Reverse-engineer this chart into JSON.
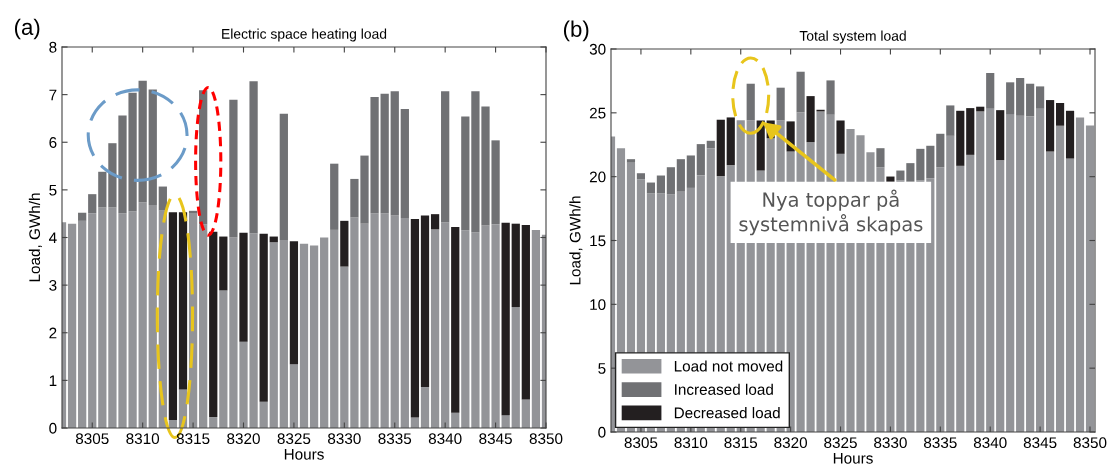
{
  "chart_data": [
    {
      "type": "bar",
      "title": "Electric space heating load",
      "xlabel": "Hours",
      "ylabel": "Load, GWh/h",
      "stacked": true,
      "x": [
        8302,
        8303,
        8304,
        8305,
        8306,
        8307,
        8308,
        8309,
        8310,
        8311,
        8312,
        8313,
        8314,
        8315,
        8316,
        8317,
        8318,
        8319,
        8320,
        8321,
        8322,
        8323,
        8324,
        8325,
        8326,
        8327,
        8328,
        8329,
        8330,
        8331,
        8332,
        8333,
        8334,
        8335,
        8336,
        8337,
        8338,
        8339,
        8340,
        8341,
        8342,
        8343,
        8344,
        8345,
        8346,
        8347,
        8348,
        8349,
        8350
      ],
      "series": [
        {
          "color": "#939498",
          "values": [
            4.32,
            4.29,
            4.35,
            4.51,
            4.63,
            4.63,
            4.51,
            4.55,
            4.74,
            4.68,
            4.57,
            0.17,
            0.81,
            4.5,
            4.28,
            0.23,
            2.89,
            4.0,
            1.81,
            4.09,
            0.55,
            3.9,
            3.95,
            1.34,
            3.87,
            3.83,
            4.0,
            4.16,
            3.39,
            4.42,
            4.29,
            4.51,
            4.51,
            4.46,
            4.41,
            0.22,
            0.86,
            4.17,
            4.32,
            0.32,
            4.15,
            4.11,
            4.25,
            4.28,
            0.27,
            2.54,
            0.6,
            4.16,
            4.06
          ]
        },
        {
          "color": "#707174",
          "values": [
            null,
            null,
            0.17,
            0.4,
            0.75,
            1.35,
            2.05,
            2.49,
            2.55,
            2.43,
            0.5,
            null,
            null,
            0.06,
            2.81,
            null,
            null,
            2.89,
            null,
            3.19,
            null,
            null,
            2.65,
            null,
            null,
            null,
            null,
            1.39,
            null,
            0.81,
            1.43,
            2.44,
            2.51,
            2.61,
            2.29,
            null,
            null,
            null,
            2.75,
            null,
            2.39,
            2.96,
            2.5,
            1.76,
            null,
            null,
            null,
            null,
            null
          ]
        },
        {
          "color": "#231f20",
          "values": [
            null,
            null,
            null,
            null,
            null,
            null,
            null,
            null,
            null,
            null,
            null,
            4.36,
            3.72,
            null,
            null,
            3.89,
            1.13,
            null,
            2.29,
            null,
            3.53,
            0.12,
            null,
            2.58,
            null,
            null,
            null,
            null,
            0.96,
            null,
            null,
            null,
            null,
            null,
            null,
            4.17,
            3.6,
            0.32,
            null,
            3.9,
            null,
            null,
            null,
            null,
            4.04,
            1.75,
            3.66,
            null,
            null
          ]
        }
      ],
      "xlim": [
        8302,
        8350
      ],
      "ylim": [
        0,
        8
      ],
      "xticks": [
        8305,
        8310,
        8315,
        8320,
        8325,
        8330,
        8335,
        8340,
        8345,
        8350
      ],
      "yticks": [
        0,
        1,
        2,
        3,
        4,
        5,
        6,
        7,
        8
      ],
      "annotations": [
        "(a)"
      ]
    },
    {
      "type": "bar",
      "title": "Total system load",
      "xlabel": "Hours",
      "ylabel": "Load, GWh/h",
      "stacked": true,
      "x": [
        8302,
        8303,
        8304,
        8305,
        8306,
        8307,
        8308,
        8309,
        8310,
        8311,
        8312,
        8313,
        8314,
        8315,
        8316,
        8317,
        8318,
        8319,
        8320,
        8321,
        8322,
        8323,
        8324,
        8325,
        8326,
        8327,
        8328,
        8329,
        8330,
        8331,
        8332,
        8333,
        8334,
        8335,
        8336,
        8337,
        8338,
        8339,
        8340,
        8341,
        8342,
        8343,
        8344,
        8345,
        8346,
        8347,
        8348,
        8349,
        8350
      ],
      "series": [
        {
          "name": "Load not moved",
          "color": "#939498",
          "values": [
            23.15,
            22.23,
            21.1,
            19.8,
            18.7,
            18.7,
            18.62,
            18.83,
            19.12,
            20.12,
            22.23,
            20.04,
            20.9,
            24.41,
            24.4,
            20.48,
            23.02,
            24.4,
            21.97,
            25.03,
            22.7,
            25.11,
            24.85,
            21.79,
            23.73,
            23.25,
            21.92,
            20.74,
            19.6,
            19.7,
            19.6,
            19.7,
            19.88,
            20.74,
            23.2,
            20.85,
            21.71,
            25.11,
            25.32,
            21.29,
            24.9,
            24.77,
            24.72,
            25.32,
            21.97,
            23.99,
            21.42,
            24.64,
            24.01
          ]
        },
        {
          "name": "Increased load",
          "color": "#707174",
          "values": [
            null,
            null,
            0.27,
            0.47,
            0.84,
            1.39,
            2.12,
            2.54,
            2.54,
            2.43,
            0.58,
            null,
            null,
            null,
            2.88,
            null,
            null,
            2.57,
            null,
            3.19,
            null,
            null,
            2.69,
            null,
            null,
            null,
            null,
            1.49,
            null,
            0.78,
            1.46,
            2.48,
            2.54,
            2.62,
            2.38,
            null,
            null,
            null,
            2.8,
            null,
            2.49,
            2.96,
            2.56,
            1.75,
            null,
            null,
            null,
            null,
            null
          ]
        },
        {
          "name": "Decreased load",
          "color": "#231f20",
          "values": [
            null,
            null,
            null,
            null,
            null,
            null,
            null,
            null,
            null,
            null,
            null,
            4.42,
            3.74,
            null,
            null,
            3.92,
            1.38,
            null,
            2.36,
            null,
            3.61,
            0.13,
            null,
            2.61,
            null,
            null,
            null,
            null,
            0.41,
            null,
            null,
            null,
            null,
            null,
            null,
            4.31,
            3.66,
            0.37,
            null,
            3.92,
            null,
            null,
            null,
            null,
            4.03,
            1.78,
            3.74,
            null,
            null
          ]
        }
      ],
      "xlim": [
        8302,
        8350.5
      ],
      "ylim": [
        0,
        30
      ],
      "xticks": [
        8305,
        8310,
        8315,
        8320,
        8325,
        8330,
        8335,
        8340,
        8345,
        8350
      ],
      "yticks": [
        0,
        5,
        10,
        15,
        20,
        25,
        30
      ],
      "legend": "bottom left",
      "annotations": [
        "(b)",
        {
          "text": "Nya toppar på\nsystemnivå skapas",
          "x": 8317,
          "y": 24.4
        }
      ]
    }
  ]
}
